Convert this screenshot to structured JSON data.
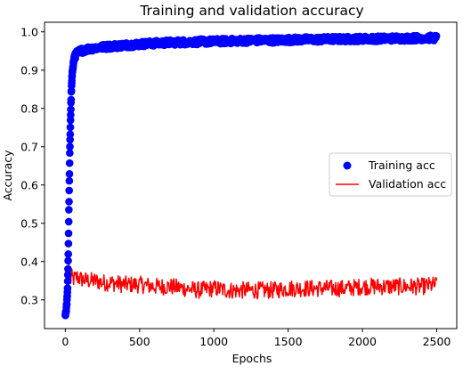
{
  "chart_data": {
    "type": "line",
    "title": "Training and validation accuracy",
    "xlabel": "Epochs",
    "ylabel": "Accuracy",
    "xlim": [
      -140,
      2635
    ],
    "ylim": [
      0.225,
      1.025
    ],
    "x_ticks": [
      "0",
      "500",
      "1000",
      "1500",
      "2000",
      "2500"
    ],
    "x_tick_values": [
      0,
      500,
      1000,
      1500,
      2000,
      2500
    ],
    "y_ticks": [
      "0.3",
      "0.4",
      "0.5",
      "0.6",
      "0.7",
      "0.8",
      "0.9",
      "1.0"
    ],
    "y_tick_values": [
      0.3,
      0.4,
      0.5,
      0.6,
      0.7,
      0.8,
      0.9,
      1.0
    ],
    "grid": false,
    "legend_placement": "center-right",
    "series": [
      {
        "name": "Training acc",
        "style": "markers",
        "color": "#0000ff",
        "x": [
          0,
          5,
          10,
          15,
          20,
          25,
          30,
          35,
          40,
          45,
          50,
          55,
          60,
          70,
          80,
          100,
          120,
          150,
          200,
          250,
          300,
          400,
          500,
          600,
          700,
          800,
          900,
          1000,
          1100,
          1200,
          1300,
          1400,
          1500,
          1600,
          1700,
          1800,
          1900,
          2000,
          2100,
          2200,
          2300,
          2400,
          2500
        ],
        "y": [
          0.26,
          0.27,
          0.29,
          0.33,
          0.42,
          0.56,
          0.68,
          0.77,
          0.84,
          0.88,
          0.905,
          0.92,
          0.93,
          0.94,
          0.945,
          0.95,
          0.952,
          0.955,
          0.958,
          0.96,
          0.962,
          0.965,
          0.968,
          0.97,
          0.972,
          0.973,
          0.974,
          0.975,
          0.976,
          0.977,
          0.978,
          0.978,
          0.979,
          0.98,
          0.98,
          0.981,
          0.981,
          0.982,
          0.982,
          0.983,
          0.983,
          0.984,
          0.984
        ]
      },
      {
        "name": "Validation acc",
        "style": "line",
        "color": "#ff0000",
        "x": [
          0,
          5,
          10,
          15,
          20,
          25,
          30,
          35,
          40,
          50,
          60,
          80,
          100,
          150,
          200,
          250,
          300,
          400,
          500,
          600,
          700,
          800,
          900,
          1000,
          1100,
          1200,
          1300,
          1400,
          1500,
          1600,
          1700,
          1800,
          1900,
          2000,
          2100,
          2200,
          2300,
          2400,
          2500
        ],
        "y": [
          0.26,
          0.28,
          0.31,
          0.35,
          0.38,
          0.4,
          0.37,
          0.35,
          0.36,
          0.355,
          0.355,
          0.36,
          0.355,
          0.35,
          0.35,
          0.345,
          0.345,
          0.34,
          0.34,
          0.335,
          0.335,
          0.33,
          0.325,
          0.33,
          0.325,
          0.325,
          0.325,
          0.325,
          0.33,
          0.33,
          0.33,
          0.33,
          0.33,
          0.335,
          0.335,
          0.335,
          0.335,
          0.335,
          0.34
        ]
      }
    ]
  }
}
